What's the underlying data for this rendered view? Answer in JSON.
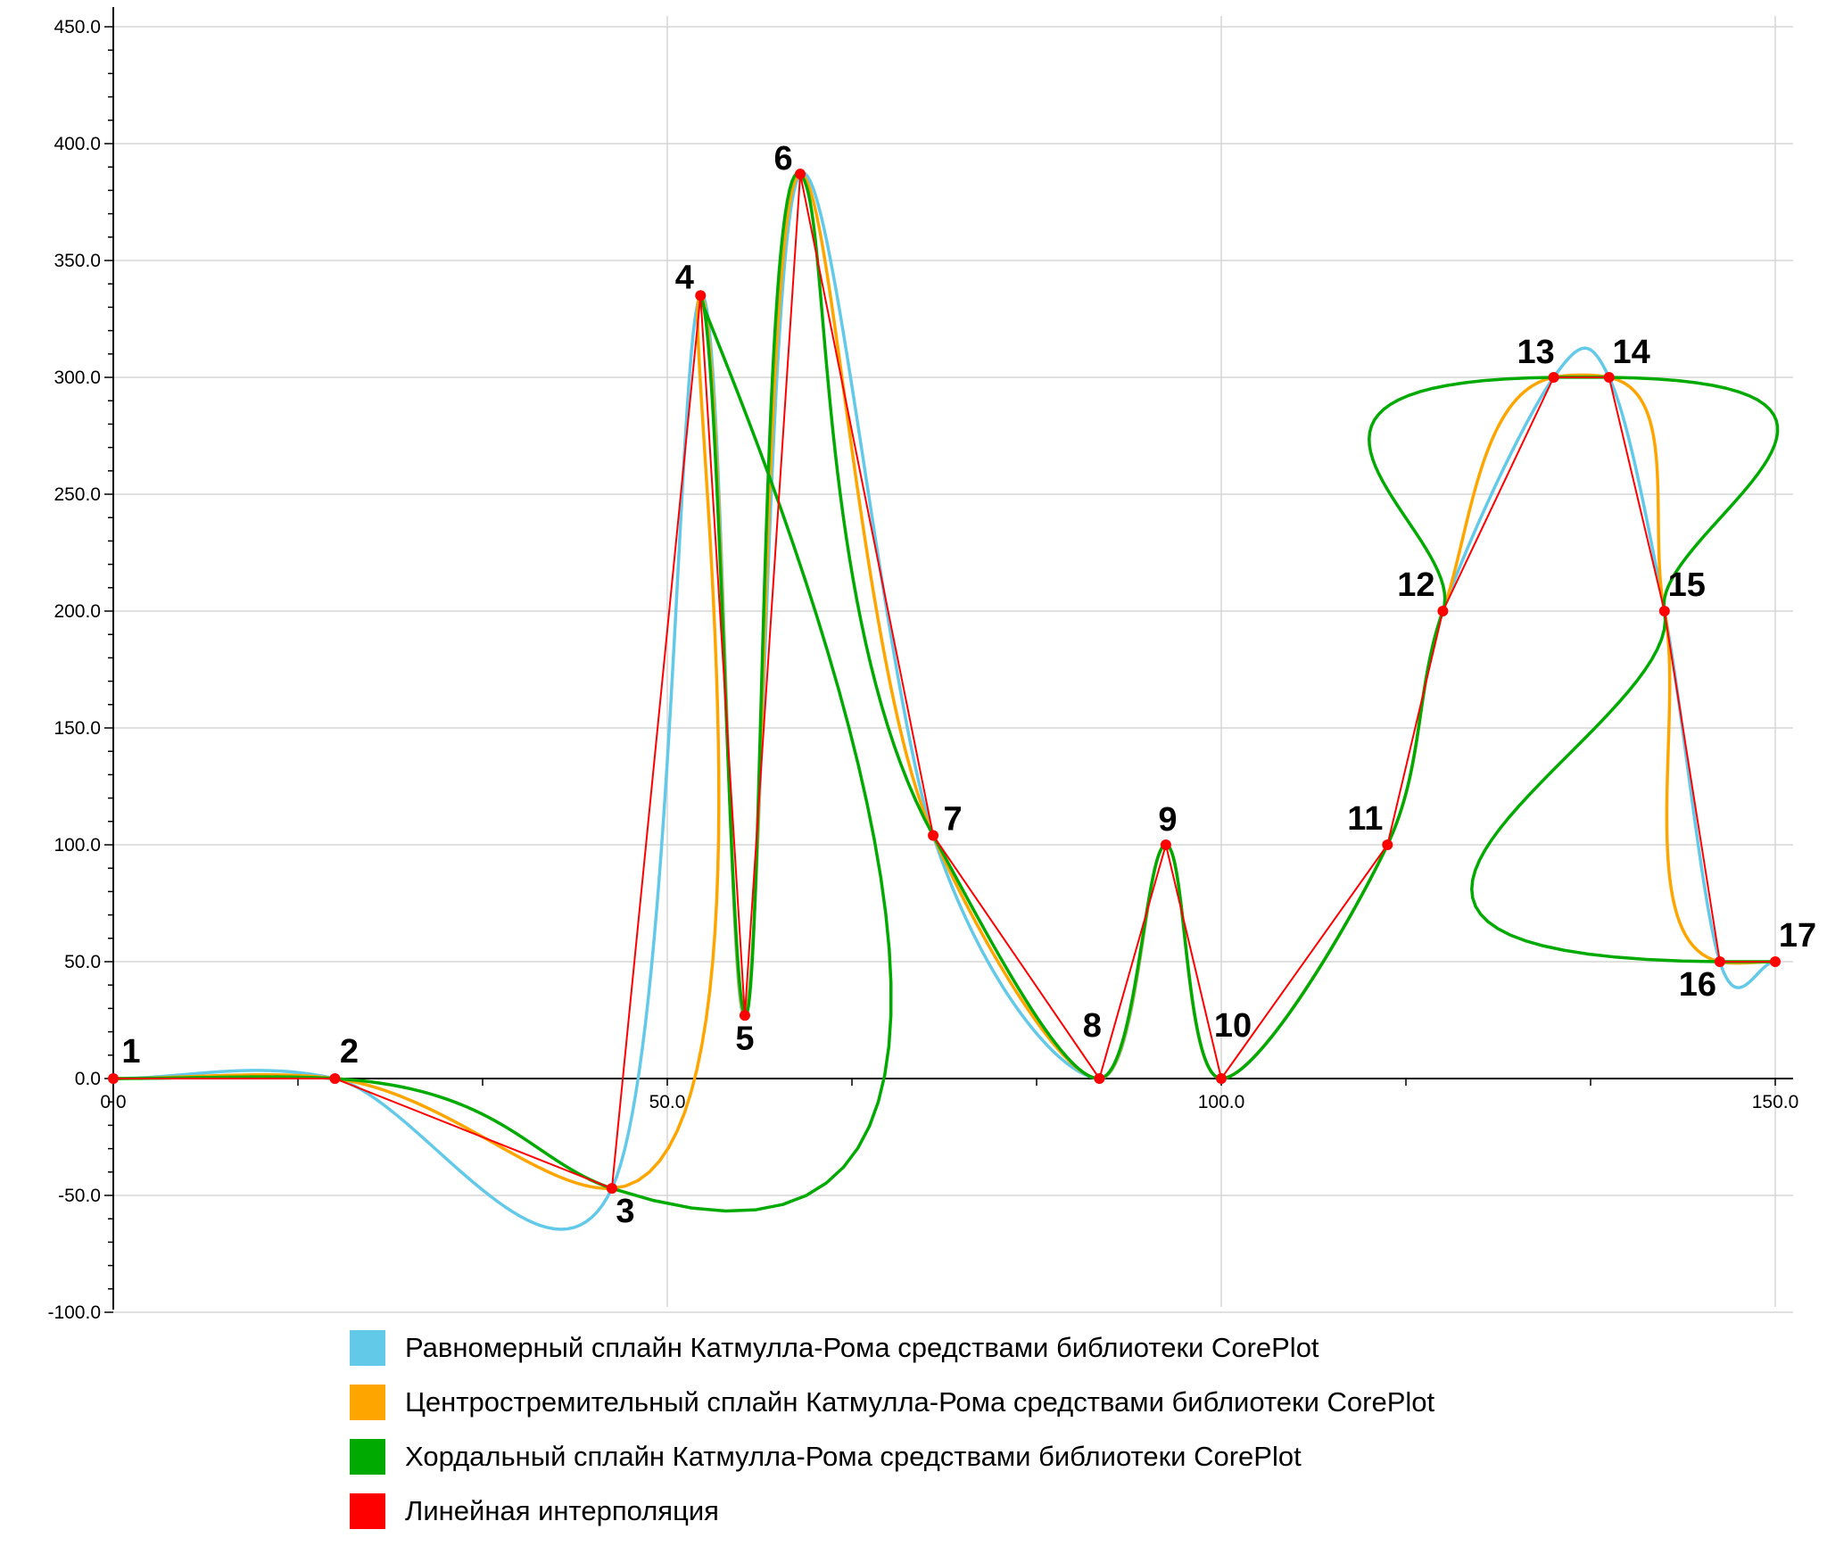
{
  "chart_data": {
    "type": "line",
    "title": "",
    "xlabel": "",
    "ylabel": "",
    "xlim": [
      0,
      150
    ],
    "ylim": [
      -100,
      450
    ],
    "grid": true,
    "x_ticks": [
      0,
      50,
      100,
      150
    ],
    "x_tick_labels": [
      "0.0",
      "50.0",
      "100.0",
      "150.0"
    ],
    "y_ticks": [
      -100,
      -50,
      0,
      50,
      100,
      150,
      200,
      250,
      300,
      350,
      400,
      450
    ],
    "y_tick_labels": [
      "-100.0",
      "-50.0",
      "0.0",
      "50.0",
      "100.0",
      "150.0",
      "200.0",
      "250.0",
      "300.0",
      "350.0",
      "400.0",
      "450.0"
    ],
    "points": {
      "labels": [
        "1",
        "2",
        "3",
        "4",
        "5",
        "6",
        "7",
        "8",
        "9",
        "10",
        "11",
        "12",
        "13",
        "14",
        "15",
        "16",
        "17"
      ],
      "x": [
        0,
        20,
        45,
        53,
        57,
        62,
        74,
        89,
        95,
        100,
        115,
        120,
        130,
        135,
        140,
        145,
        150
      ],
      "y": [
        0,
        0,
        -47,
        335,
        27,
        387,
        104,
        0,
        100,
        0,
        100,
        200,
        300,
        300,
        200,
        50,
        50
      ]
    },
    "series": [
      {
        "name": "Равномерный сплайн Катмулла-Рома средствами библиотеки CorePlot",
        "color": "#62C9E8",
        "method": "uniform"
      },
      {
        "name": "Центростремительный сплайн Катмулла-Рома средствами библиотеки CorePlot",
        "color": "#FFA500",
        "method": "centripetal"
      },
      {
        "name": "Хордальный сплайн Катмулла-Рома средствами библиотеки CorePlot",
        "color": "#00AA00",
        "method": "chordal"
      },
      {
        "name": "Линейная интерполяция",
        "color": "#FF0000",
        "method": "linear"
      }
    ],
    "legend_position": "bottom"
  }
}
